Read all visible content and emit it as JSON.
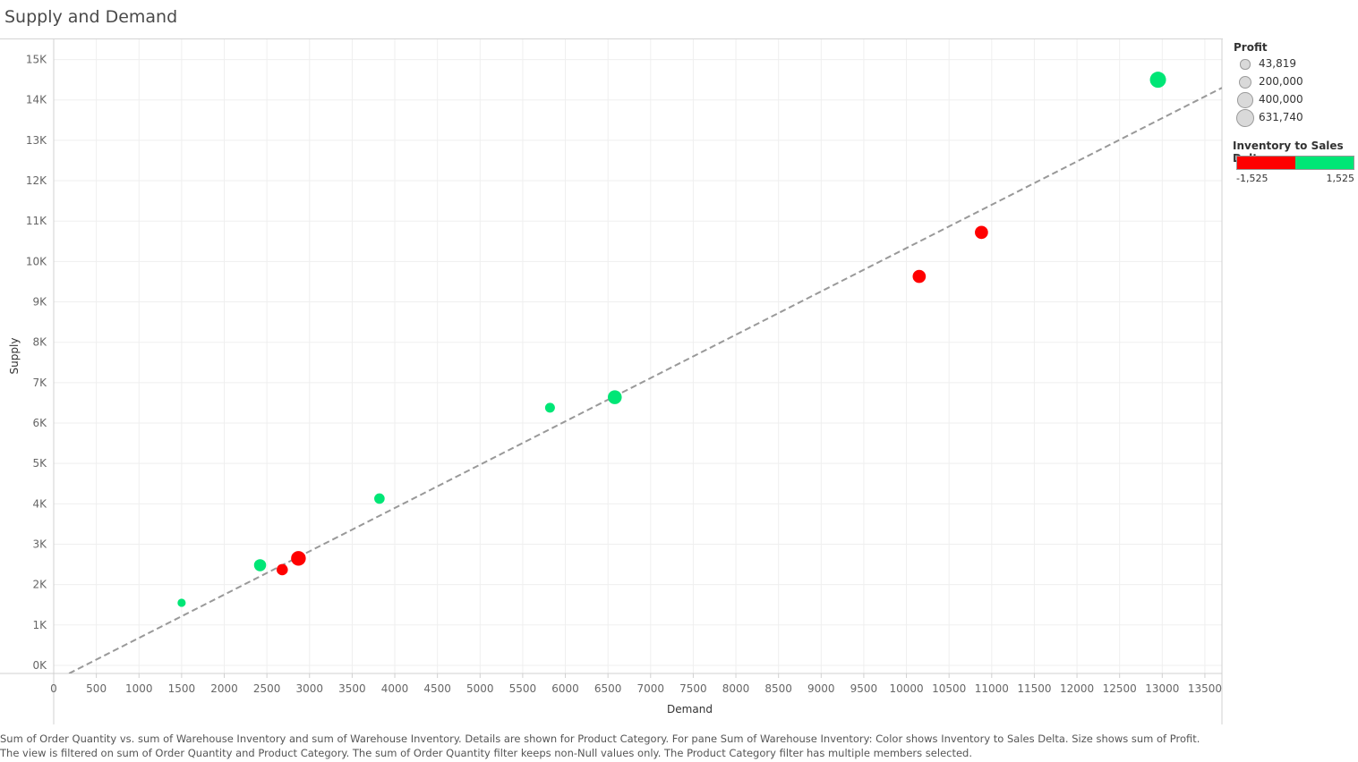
{
  "title": "Supply and Demand",
  "chart_data": {
    "type": "scatter",
    "xlabel": "Demand",
    "ylabel": "Supply",
    "xlim": [
      0,
      13700
    ],
    "ylim": [
      -200,
      15500
    ],
    "x_ticks": [
      0,
      500,
      1000,
      1500,
      2000,
      2500,
      3000,
      3500,
      4000,
      4500,
      5000,
      5500,
      6000,
      6500,
      7000,
      7500,
      8000,
      8500,
      9000,
      9500,
      10000,
      10500,
      11000,
      11500,
      12000,
      12500,
      13000,
      13500
    ],
    "y_ticks": [
      0,
      1000,
      2000,
      3000,
      4000,
      5000,
      6000,
      7000,
      8000,
      9000,
      10000,
      11000,
      12000,
      13000,
      14000,
      15000
    ],
    "y_tick_labels": [
      "0K",
      "1K",
      "2K",
      "3K",
      "4K",
      "5K",
      "6K",
      "7K",
      "8K",
      "9K",
      "10K",
      "11K",
      "12K",
      "13K",
      "14K",
      "15K"
    ],
    "grid": true,
    "trend_line": {
      "from": [
        180,
        -200
      ],
      "to": [
        13700,
        14300
      ],
      "style": "dashed",
      "color": "#999999"
    },
    "points": [
      {
        "x": 1500,
        "y": 1550,
        "profit": 43819,
        "delta": "positive",
        "color": "#00e676"
      },
      {
        "x": 2420,
        "y": 2480,
        "profit": 250000,
        "delta": "positive",
        "color": "#00e676"
      },
      {
        "x": 2680,
        "y": 2370,
        "profit": 190000,
        "delta": "negative",
        "color": "#ff0000"
      },
      {
        "x": 2870,
        "y": 2650,
        "profit": 480000,
        "delta": "negative",
        "color": "#ff0000"
      },
      {
        "x": 3820,
        "y": 4130,
        "profit": 140000,
        "delta": "positive",
        "color": "#00e676"
      },
      {
        "x": 5820,
        "y": 6380,
        "profit": 110000,
        "delta": "positive",
        "color": "#00e676"
      },
      {
        "x": 6580,
        "y": 6640,
        "profit": 400000,
        "delta": "positive",
        "color": "#00e676"
      },
      {
        "x": 10150,
        "y": 9630,
        "profit": 330000,
        "delta": "negative",
        "color": "#ff0000"
      },
      {
        "x": 10880,
        "y": 10720,
        "profit": 330000,
        "delta": "negative",
        "color": "#ff0000"
      },
      {
        "x": 12950,
        "y": 14500,
        "profit": 631740,
        "delta": "positive",
        "color": "#00e676"
      }
    ]
  },
  "legend": {
    "profit_title": "Profit",
    "profit_items": [
      {
        "label": "43,819",
        "value": 43819
      },
      {
        "label": "200,000",
        "value": 200000
      },
      {
        "label": "400,000",
        "value": 400000
      },
      {
        "label": "631,740",
        "value": 631740
      }
    ],
    "delta_title": "Inventory to Sales Delta",
    "delta_min": "-1,525",
    "delta_max": "1,525",
    "negative_color": "#ff0000",
    "positive_color": "#00e676"
  },
  "caption": "Sum of Order Quantity vs. sum of Warehouse Inventory and sum of Warehouse Inventory.  Details are shown for Product Category.  For pane Sum of Warehouse Inventory:  Color shows Inventory to Sales Delta.  Size shows sum of Profit. The view is filtered on sum of Order Quantity and Product Category. The sum of Order Quantity filter keeps non-Null values only. The Product Category filter has multiple members selected."
}
